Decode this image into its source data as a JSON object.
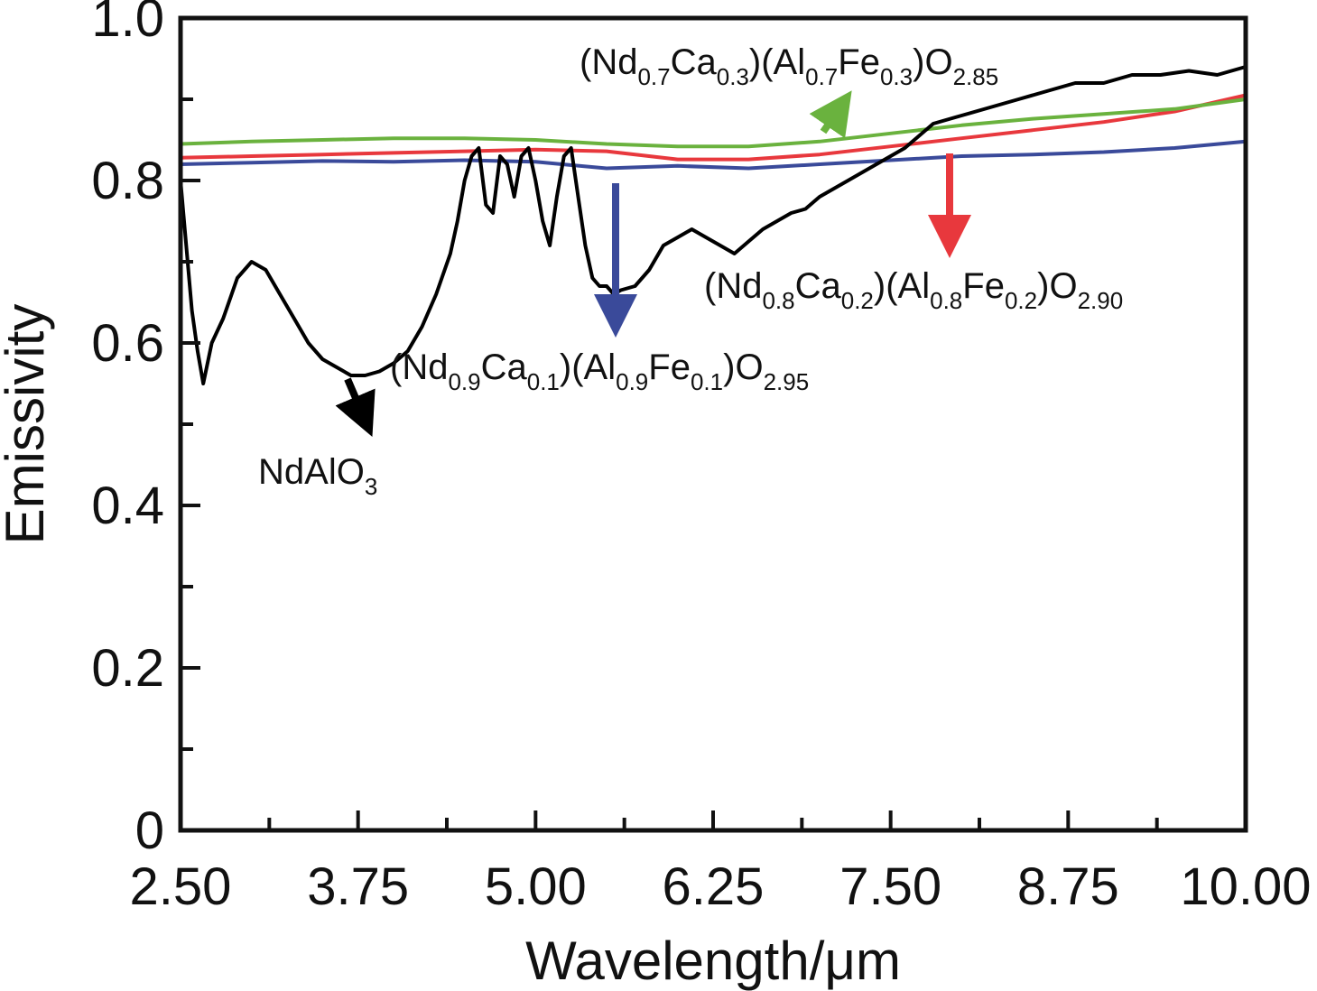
{
  "chart_data": {
    "type": "line",
    "title": "",
    "xlabel": "Wavelength/μm",
    "ylabel": "Emissivity",
    "xlim": [
      2.5,
      10.0
    ],
    "ylim": [
      0,
      1.0
    ],
    "x_ticks": [
      "2.50",
      "3.75",
      "5.00",
      "6.25",
      "7.50",
      "8.75",
      "10.00"
    ],
    "y_ticks": [
      "0",
      "0.2",
      "0.4",
      "0.6",
      "0.8",
      "1.0"
    ],
    "grid": false,
    "legend": "none",
    "series": [
      {
        "name": "NdAlO3",
        "color": "#000000",
        "x": [
          2.5,
          2.58,
          2.62,
          2.66,
          2.72,
          2.8,
          2.9,
          3.0,
          3.1,
          3.2,
          3.3,
          3.4,
          3.5,
          3.6,
          3.7,
          3.8,
          3.9,
          4.0,
          4.1,
          4.2,
          4.3,
          4.4,
          4.45,
          4.5,
          4.55,
          4.6,
          4.65,
          4.7,
          4.75,
          4.8,
          4.85,
          4.9,
          4.95,
          5.0,
          5.05,
          5.1,
          5.15,
          5.2,
          5.25,
          5.3,
          5.35,
          5.4,
          5.45,
          5.5,
          5.55,
          5.6,
          5.7,
          5.8,
          5.9,
          6.0,
          6.1,
          6.2,
          6.3,
          6.4,
          6.5,
          6.6,
          6.7,
          6.8,
          6.9,
          7.0,
          7.2,
          7.4,
          7.6,
          7.8,
          8.0,
          8.2,
          8.4,
          8.6,
          8.8,
          9.0,
          9.2,
          9.4,
          9.6,
          9.8,
          10.0
        ],
        "y": [
          0.8,
          0.64,
          0.59,
          0.55,
          0.6,
          0.63,
          0.68,
          0.7,
          0.69,
          0.66,
          0.63,
          0.6,
          0.58,
          0.57,
          0.56,
          0.56,
          0.565,
          0.575,
          0.59,
          0.62,
          0.66,
          0.71,
          0.75,
          0.8,
          0.83,
          0.84,
          0.77,
          0.76,
          0.83,
          0.82,
          0.78,
          0.83,
          0.84,
          0.8,
          0.75,
          0.72,
          0.78,
          0.83,
          0.84,
          0.78,
          0.72,
          0.68,
          0.67,
          0.67,
          0.66,
          0.665,
          0.67,
          0.69,
          0.72,
          0.73,
          0.74,
          0.73,
          0.72,
          0.71,
          0.725,
          0.74,
          0.75,
          0.76,
          0.765,
          0.78,
          0.8,
          0.82,
          0.84,
          0.87,
          0.88,
          0.89,
          0.9,
          0.91,
          0.92,
          0.92,
          0.93,
          0.93,
          0.935,
          0.93,
          0.94
        ]
      },
      {
        "name": "(Nd0.9Ca0.1)(Al0.9Fe0.1)O2.95",
        "color": "#3a4a9a",
        "x": [
          2.5,
          3.0,
          3.5,
          4.0,
          4.5,
          5.0,
          5.5,
          6.0,
          6.5,
          7.0,
          7.5,
          8.0,
          8.5,
          9.0,
          9.5,
          10.0
        ],
        "y": [
          0.82,
          0.822,
          0.824,
          0.823,
          0.825,
          0.823,
          0.815,
          0.818,
          0.815,
          0.82,
          0.825,
          0.83,
          0.832,
          0.835,
          0.84,
          0.848
        ]
      },
      {
        "name": "(Nd0.8Ca0.2)(Al0.8Fe0.2)O2.90",
        "color": "#e8383d",
        "x": [
          2.5,
          3.0,
          3.5,
          4.0,
          4.5,
          5.0,
          5.5,
          6.0,
          6.5,
          7.0,
          7.5,
          8.0,
          8.5,
          9.0,
          9.5,
          10.0
        ],
        "y": [
          0.828,
          0.83,
          0.832,
          0.834,
          0.836,
          0.838,
          0.836,
          0.826,
          0.826,
          0.832,
          0.842,
          0.852,
          0.862,
          0.872,
          0.885,
          0.905
        ]
      },
      {
        "name": "(Nd0.7Ca0.3)(Al0.7Fe0.3)O2.85",
        "color": "#6ab23e",
        "x": [
          2.5,
          3.0,
          3.5,
          4.0,
          4.5,
          5.0,
          5.5,
          6.0,
          6.5,
          7.0,
          7.5,
          8.0,
          8.5,
          9.0,
          9.5,
          10.0
        ],
        "y": [
          0.845,
          0.848,
          0.85,
          0.852,
          0.852,
          0.85,
          0.845,
          0.842,
          0.842,
          0.848,
          0.858,
          0.868,
          0.876,
          0.882,
          0.888,
          0.9
        ]
      }
    ],
    "annotations": [
      {
        "id": "ndalo3",
        "base": "NdAlO",
        "sub": "3"
      },
      {
        "id": "nd09",
        "text": "(Nd0.9Ca0.1)(Al0.9Fe0.1)O2.95"
      },
      {
        "id": "nd08",
        "text": "(Nd0.8Ca0.2)(Al0.8Fe0.2)O2.90"
      },
      {
        "id": "nd07",
        "text": "(Nd0.7Ca0.3)(Al0.7Fe0.3)O2.85"
      }
    ]
  }
}
